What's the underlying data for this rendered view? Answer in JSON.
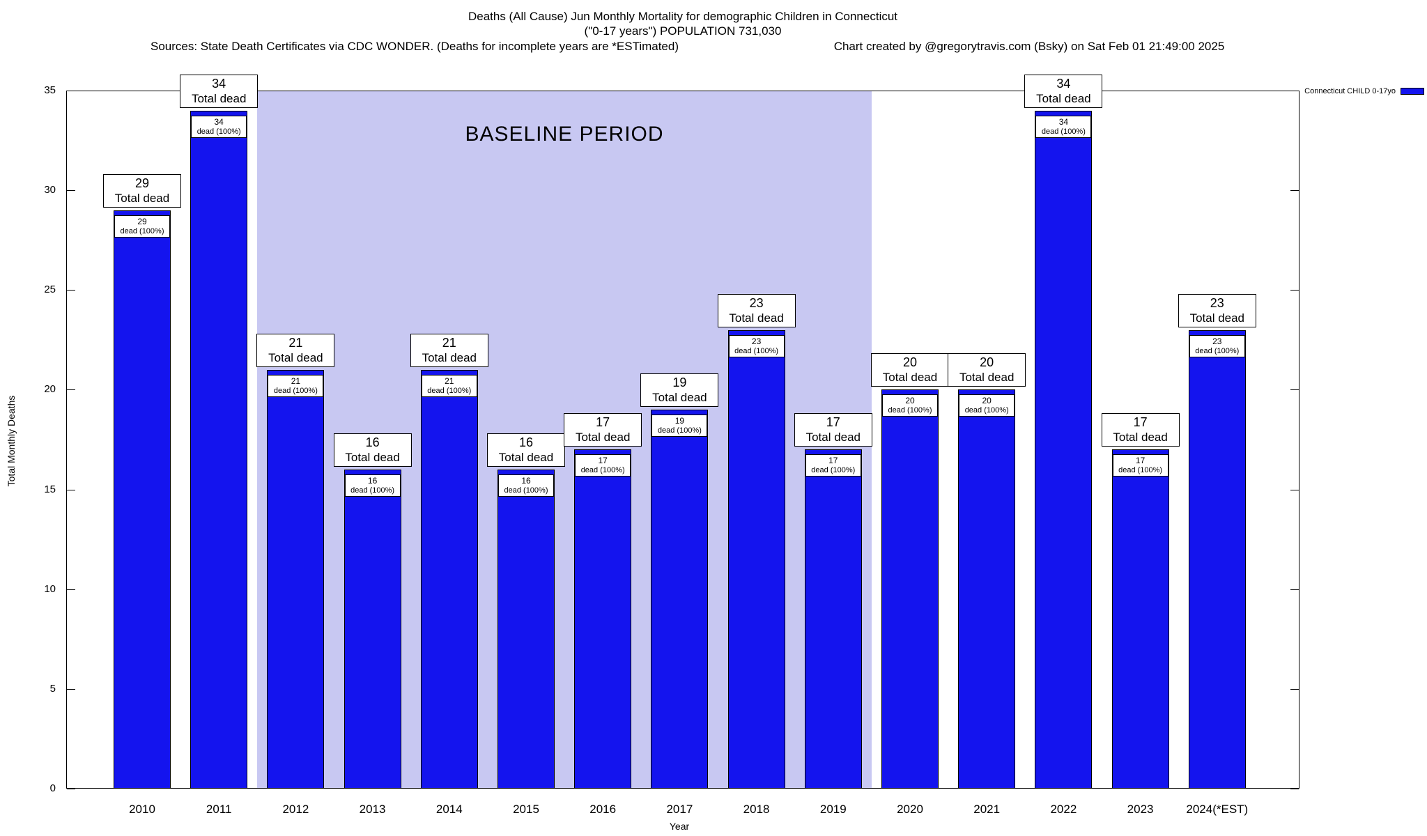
{
  "header": {
    "line1": "Deaths (All Cause) Jun Monthly Mortality for demographic Children in Connecticut",
    "line2": "(\"0-17 years\") POPULATION 731,030",
    "sources": "Sources: State Death Certificates via CDC WONDER. (Deaths for incomplete years are *ESTimated)",
    "credit": "Chart created by @gregorytravis.com (Bsky) on Sat Feb 01 21:49:00 2025"
  },
  "legend": {
    "label": "Connecticut CHILD 0-17yo",
    "swatch_color": "#1414ee"
  },
  "axes": {
    "ylabel": "Total Monthly Deaths",
    "xlabel": "Year"
  },
  "chart_data": {
    "type": "bar",
    "title": "Deaths (All Cause) Jun Monthly Mortality for demographic Children in Connecticut",
    "subtitle": "(\"0-17 years\") POPULATION 731,030",
    "xlabel": "Year",
    "ylabel": "Total Monthly Deaths",
    "ylim": [
      0,
      35
    ],
    "yticks": [
      0,
      5,
      10,
      15,
      20,
      25,
      30,
      35
    ],
    "grid": false,
    "legend_position": "top-right",
    "series_name": "Connecticut CHILD 0-17yo",
    "bar_color": "#1414ee",
    "categories": [
      "2010",
      "2011",
      "2012",
      "2013",
      "2014",
      "2015",
      "2016",
      "2017",
      "2018",
      "2019",
      "2020",
      "2021",
      "2022",
      "2023",
      "2024(*EST)"
    ],
    "values": [
      29,
      34,
      21,
      16,
      21,
      16,
      17,
      19,
      23,
      17,
      20,
      20,
      34,
      17,
      23
    ],
    "bar_top_label_suffix": "Total dead",
    "bar_inner_label_suffix": "dead (100%)",
    "baseline_region": {
      "label": "BASELINE PERIOD",
      "start_category": "2012",
      "end_category": "2019",
      "color": "#c8c8f2"
    }
  }
}
